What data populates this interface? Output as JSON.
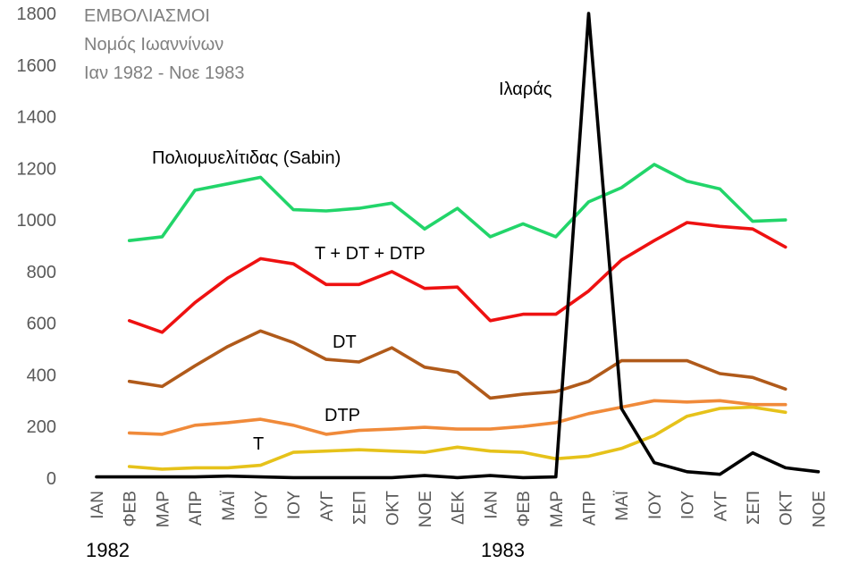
{
  "chart_data": {
    "type": "line",
    "title_lines": [
      "ΕΜΒΟΛΙΑΣΜΟΙ",
      "Νομός Ιωαννίνων",
      "Ιαν 1982 - Νοε 1983"
    ],
    "categories": [
      "ΙΑΝ",
      "ΦΕΒ",
      "ΜΑΡ",
      "ΑΠΡ",
      "ΜΑΪ",
      "ΙΟΥ",
      "ΙΟΥ",
      "ΑΥΓ",
      "ΣΕΠ",
      "ΟΚΤ",
      "ΝΟΕ",
      "ΔΕΚ",
      "ΙΑΝ",
      "ΦΕΒ",
      "ΜΑΡ",
      "ΑΠΡ",
      "ΜΑΪ",
      "ΙΟΥ",
      "ΙΟΥ",
      "ΑΥΓ",
      "ΣΕΠ",
      "ΟΚΤ",
      "ΝΟΕ"
    ],
    "year_labels": [
      "1982",
      "1983"
    ],
    "ylim": [
      0,
      1800
    ],
    "yticks": [
      0,
      200,
      400,
      600,
      800,
      1000,
      1200,
      1400,
      1600,
      1800
    ],
    "grid": false,
    "series": [
      {
        "name": "Πολιομυελίτιδας (Sabin)",
        "color": "#22d56a",
        "values": [
          null,
          920,
          935,
          1115,
          1140,
          1165,
          1040,
          1035,
          1045,
          1065,
          965,
          1045,
          935,
          985,
          935,
          1070,
          1125,
          1215,
          1150,
          1120,
          995,
          1000,
          null
        ]
      },
      {
        "name": "T + DT + DTP",
        "color": "#ee1111",
        "values": [
          null,
          610,
          565,
          680,
          775,
          850,
          830,
          750,
          750,
          800,
          735,
          740,
          610,
          635,
          635,
          725,
          845,
          920,
          990,
          975,
          965,
          895,
          null
        ]
      },
      {
        "name": "DT",
        "color": "#b05a1a",
        "values": [
          null,
          375,
          355,
          435,
          510,
          570,
          525,
          460,
          450,
          505,
          430,
          410,
          310,
          325,
          335,
          375,
          455,
          455,
          455,
          405,
          390,
          345,
          null
        ]
      },
      {
        "name": "DTP",
        "color": "#f08a3a",
        "values": [
          null,
          175,
          170,
          205,
          215,
          228,
          205,
          170,
          185,
          190,
          197,
          190,
          190,
          200,
          215,
          250,
          275,
          300,
          295,
          300,
          285,
          285,
          null
        ]
      },
      {
        "name": "T",
        "color": "#e6c21a",
        "values": [
          null,
          45,
          35,
          40,
          40,
          50,
          100,
          105,
          110,
          105,
          100,
          120,
          105,
          100,
          75,
          85,
          115,
          165,
          240,
          270,
          275,
          255,
          null
        ]
      },
      {
        "name": "Ιλαράς",
        "color": "#000000",
        "values": [
          5,
          5,
          5,
          5,
          8,
          5,
          2,
          2,
          2,
          2,
          10,
          2,
          10,
          2,
          5,
          1800,
          270,
          60,
          25,
          15,
          98,
          40,
          25
        ]
      }
    ]
  }
}
